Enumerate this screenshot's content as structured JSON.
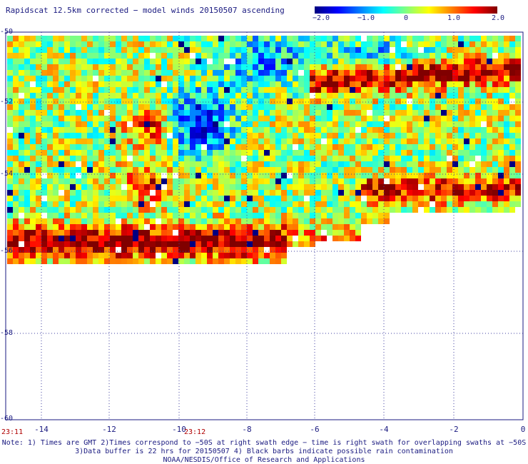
{
  "title": "Rapidscat 12.5km corrected − model winds 20150507 ascending",
  "colorbar": {
    "ticks": [
      "−2.0",
      "−1.0",
      "0",
      "1.0",
      "2.0"
    ],
    "colors": [
      "#000080",
      "#0000ff",
      "#0080ff",
      "#00ffff",
      "#80ff80",
      "#ffff00",
      "#ff8000",
      "#ff0000",
      "#800000"
    ]
  },
  "axes": {
    "y_labels": [
      "-50",
      "-52",
      "-54",
      "-56",
      "-58",
      "-60"
    ],
    "x_labels": [
      "-14",
      "-12",
      "-10",
      "-8",
      "-6",
      "-4",
      "-2",
      "0"
    ],
    "lat_range": [
      -60,
      -50
    ],
    "lon_range": [
      -15.2,
      0
    ]
  },
  "times": [
    "23:11",
    "23:12"
  ],
  "notes": [
    "Note: 1) Times are GMT 2)Times correspond to −50S at right swath edge − time is right swath for overlapping swaths at −50S",
    "3)Data buffer is 22 hrs for 20150507 4) Black barbs indicate possible rain contamination",
    "NOAA/NESDIS/Office of Research and Applications"
  ]
}
